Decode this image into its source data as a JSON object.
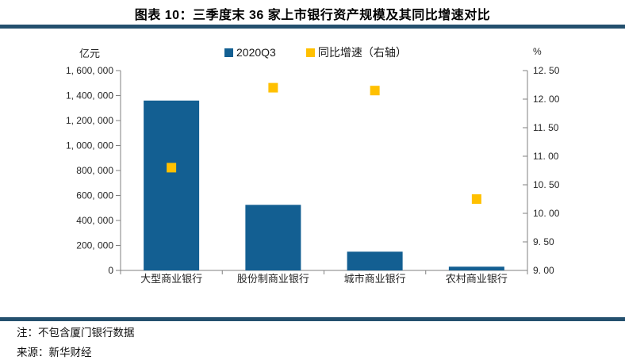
{
  "title": "图表 10：三季度末 36 家上市银行资产规模及其同比增速对比",
  "theme": {
    "rule_color": "#24506E",
    "bar_color": "#135F92",
    "marker_color": "#FFC000",
    "axis_color": "#808080"
  },
  "header": {
    "left_axis_unit": "亿元",
    "right_axis_unit": "%",
    "legend": [
      {
        "label": "2020Q3",
        "color": "#135F92"
      },
      {
        "label": "同比增速（右轴）",
        "color": "#FFC000"
      }
    ]
  },
  "chart_data": {
    "type": "bar",
    "title": "三季度末 36 家上市银行资产规模及其同比增速对比",
    "categories": [
      "大型商业银行",
      "股份制商业银行",
      "城市商业银行",
      "农村商业银行"
    ],
    "series": [
      {
        "name": "2020Q3",
        "type": "bar",
        "axis": "left",
        "unit": "亿元",
        "color": "#135F92",
        "values": [
          1360000,
          525000,
          150000,
          30000
        ]
      },
      {
        "name": "同比增速（右轴）",
        "type": "scatter",
        "axis": "right",
        "unit": "%",
        "color": "#FFC000",
        "values": [
          10.8,
          12.2,
          12.15,
          10.25
        ]
      }
    ],
    "left_axis": {
      "unit": "亿元",
      "min": 0,
      "max": 1600000,
      "tick_step": 200000,
      "tick_labels": [
        "0",
        "200, 000",
        "400, 000",
        "600, 000",
        "800, 000",
        "1, 000, 000",
        "1, 200, 000",
        "1, 400, 000",
        "1, 600, 000"
      ]
    },
    "right_axis": {
      "unit": "%",
      "min": 9.0,
      "max": 12.5,
      "tick_step": 0.5,
      "tick_labels": [
        "9. 00",
        "9. 50",
        "10. 00",
        "10. 50",
        "11. 00",
        "11. 50",
        "12. 00",
        "12. 50"
      ]
    },
    "grid": false,
    "legend_position": "top"
  },
  "notes": {
    "note": "注：不包含厦门银行数据",
    "source": "来源：新华财经"
  }
}
